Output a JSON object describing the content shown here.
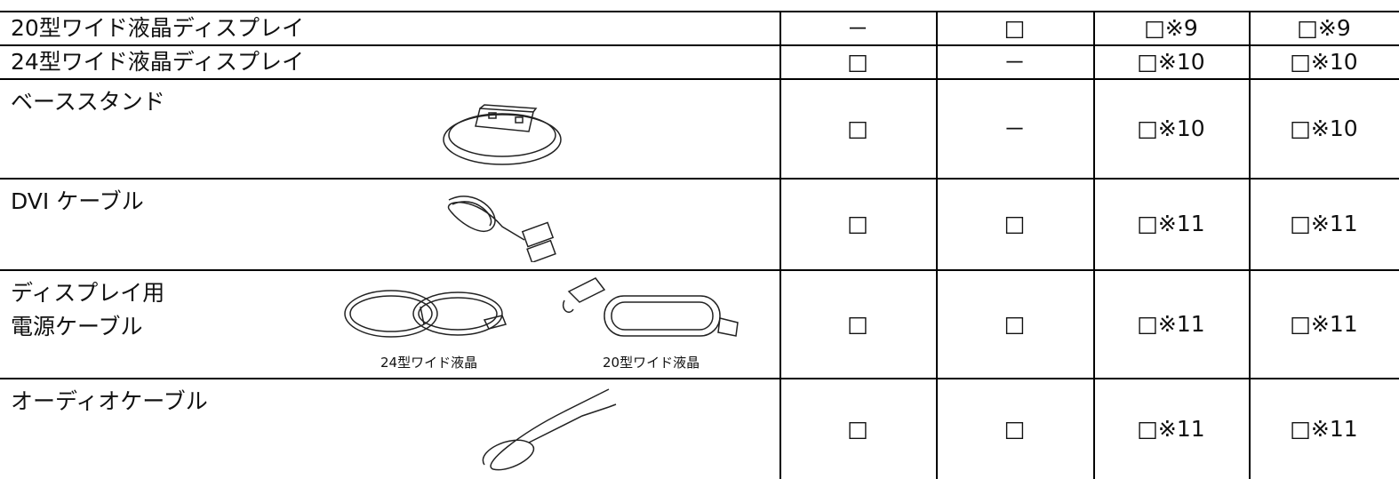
{
  "table": {
    "rows": [
      {
        "label": "20型ワイド液晶ディスプレイ",
        "cells": [
          "－",
          "□",
          "□※9",
          "□※9"
        ]
      },
      {
        "label": "24型ワイド液晶ディスプレイ",
        "cells": [
          "□",
          "－",
          "□※10",
          "□※10"
        ]
      },
      {
        "label": "ベーススタンド",
        "cells": [
          "□",
          "－",
          "□※10",
          "□※10"
        ]
      },
      {
        "label": "DVI ケーブル",
        "cells": [
          "□",
          "□",
          "□※11",
          "□※11"
        ]
      },
      {
        "label": "ディスプレイ用\n電源ケーブル",
        "cells": [
          "□",
          "□",
          "□※11",
          "□※11"
        ],
        "captions": [
          "24型ワイド液晶",
          "20型ワイド液晶"
        ]
      },
      {
        "label": "オーディオケーブル",
        "cells": [
          "□",
          "□",
          "□※11",
          "□※11"
        ]
      }
    ]
  }
}
